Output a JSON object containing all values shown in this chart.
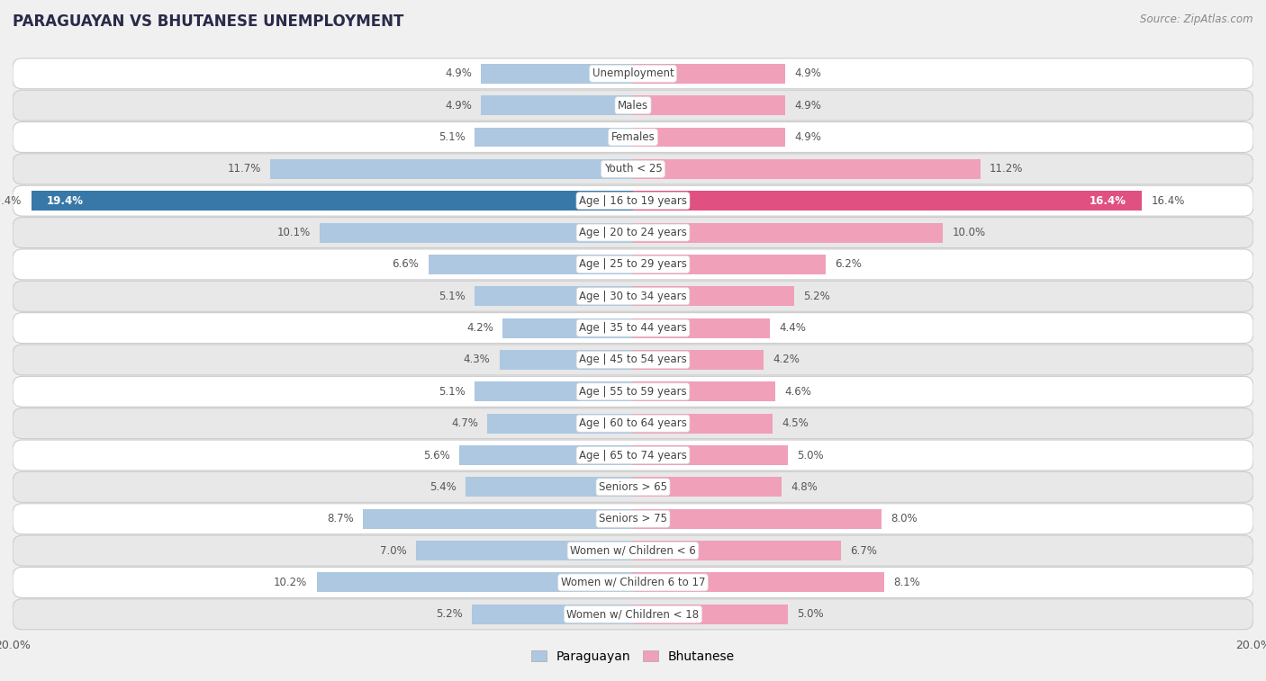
{
  "title": "PARAGUAYAN VS BHUTANESE UNEMPLOYMENT",
  "source": "Source: ZipAtlas.com",
  "categories": [
    "Unemployment",
    "Males",
    "Females",
    "Youth < 25",
    "Age | 16 to 19 years",
    "Age | 20 to 24 years",
    "Age | 25 to 29 years",
    "Age | 30 to 34 years",
    "Age | 35 to 44 years",
    "Age | 45 to 54 years",
    "Age | 55 to 59 years",
    "Age | 60 to 64 years",
    "Age | 65 to 74 years",
    "Seniors > 65",
    "Seniors > 75",
    "Women w/ Children < 6",
    "Women w/ Children 6 to 17",
    "Women w/ Children < 18"
  ],
  "paraguayan": [
    4.9,
    4.9,
    5.1,
    11.7,
    19.4,
    10.1,
    6.6,
    5.1,
    4.2,
    4.3,
    5.1,
    4.7,
    5.6,
    5.4,
    8.7,
    7.0,
    10.2,
    5.2
  ],
  "bhutanese": [
    4.9,
    4.9,
    4.9,
    11.2,
    16.4,
    10.0,
    6.2,
    5.2,
    4.4,
    4.2,
    4.6,
    4.5,
    5.0,
    4.8,
    8.0,
    6.7,
    8.1,
    5.0
  ],
  "paraguayan_color": "#adc8e0",
  "bhutanese_color": "#f0a0b8",
  "highlight_paraguayan": [
    false,
    false,
    false,
    false,
    true,
    false,
    false,
    false,
    false,
    false,
    false,
    false,
    false,
    false,
    false,
    false,
    false,
    false
  ],
  "highlight_bhutanese": [
    false,
    false,
    false,
    false,
    true,
    false,
    false,
    false,
    false,
    false,
    false,
    false,
    false,
    false,
    false,
    false,
    false,
    false
  ],
  "highlight_paraguayan_color": "#3878a8",
  "highlight_bhutanese_color": "#e05080",
  "xlim": 20.0,
  "bar_height": 0.62,
  "bg_color": "#f0f0f0",
  "row_color_odd": "#ffffff",
  "row_color_even": "#e8e8e8",
  "label_fontsize": 8.5,
  "title_fontsize": 12,
  "source_fontsize": 8.5,
  "legend_fontsize": 10,
  "value_fontsize": 8.5
}
